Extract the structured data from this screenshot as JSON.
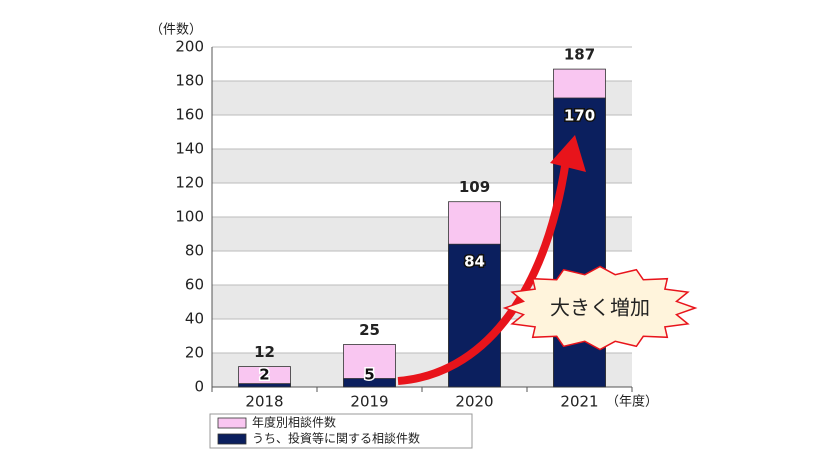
{
  "chart_data": {
    "type": "bar",
    "y_unit": "（件数）",
    "x_unit": "（年度）",
    "annotation": "大きく増加",
    "categories": [
      "2018",
      "2019",
      "2020",
      "2021"
    ],
    "series": [
      {
        "name": "年度別相談件数",
        "color": "#f9c6f1",
        "values": [
          12,
          25,
          109,
          187
        ]
      },
      {
        "name": "うち、投資等に関する相談件数",
        "color": "#0b1f5e",
        "values": [
          2,
          5,
          84,
          170
        ]
      }
    ],
    "ylim": [
      0,
      200
    ],
    "yticks": [
      0,
      20,
      40,
      60,
      80,
      100,
      120,
      140,
      160,
      180,
      200
    ],
    "grid": true,
    "overlay": true
  }
}
